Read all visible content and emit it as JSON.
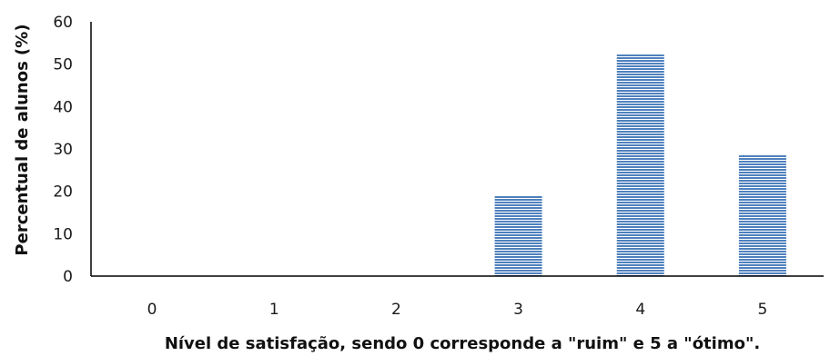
{
  "chart_data": {
    "type": "bar",
    "categories": [
      "0",
      "1",
      "2",
      "3",
      "4",
      "5"
    ],
    "values": [
      0,
      0,
      0,
      19,
      52.5,
      28.5
    ],
    "title": "",
    "xlabel": "Nível de satisfação, sendo 0 corresponde a \"ruim\" e 5 a \"ótimo\".",
    "ylabel": "Percentual de alunos (%)",
    "ylim": [
      0,
      60
    ],
    "yticks": [
      0,
      10,
      20,
      30,
      40,
      50,
      60
    ],
    "grid": false,
    "legend": "none",
    "bar_fill_pattern": "horizontal-stripes",
    "colors": {
      "bar_stripe": "#4f81bd",
      "bar_gap": "#ffffff",
      "axis": "#000000"
    }
  }
}
